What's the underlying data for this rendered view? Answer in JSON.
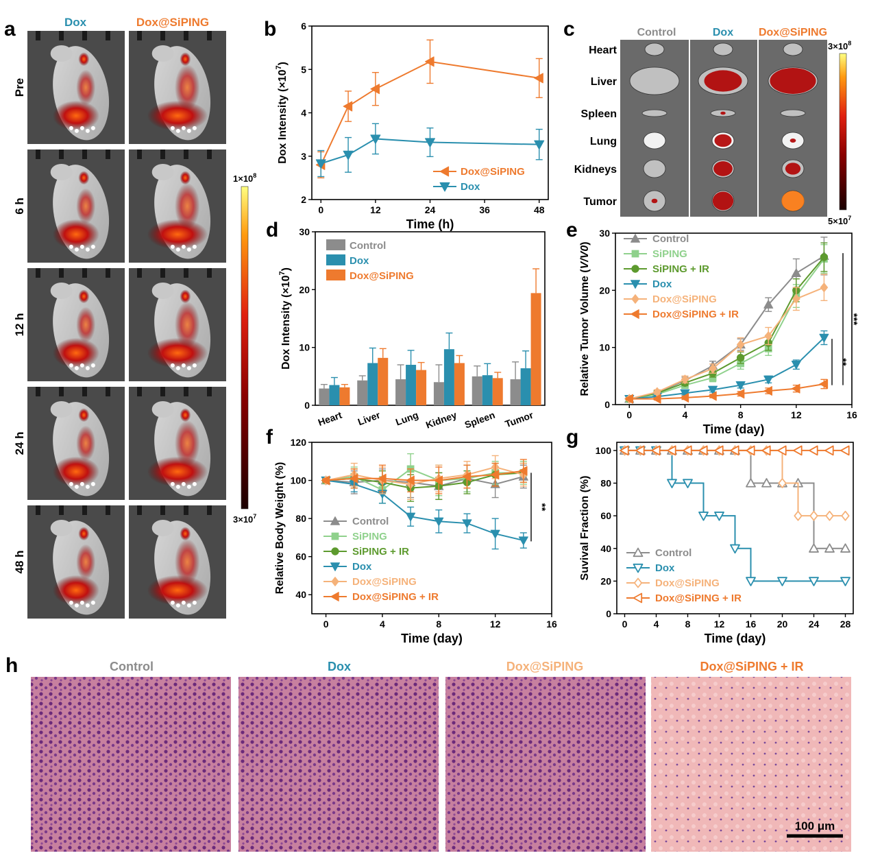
{
  "colors": {
    "control": "#8c8c8c",
    "siping": "#8fd18c",
    "siping_ir": "#5d9a2e",
    "dox": "#2a8fae",
    "dox_siping": "#f5b27a",
    "dox_siping_ir": "#ee7a2e",
    "label_dox": "#2a8fae",
    "label_doxsiping": "#ee7a2e",
    "label_doxsiping_light": "#f5b27a",
    "label_control": "#8c8c8c"
  },
  "panel_letters": {
    "a": "a",
    "b": "b",
    "c": "c",
    "d": "d",
    "e": "e",
    "f": "f",
    "g": "g",
    "h": "h"
  },
  "panel_a": {
    "col_labels": [
      "Dox",
      "Dox@SiPING"
    ],
    "row_labels": [
      "Pre",
      "6 h",
      "12 h",
      "24 h",
      "48 h"
    ],
    "colorbar_max_base": "1×10",
    "colorbar_max_exp": "8",
    "colorbar_min_base": "3×10",
    "colorbar_min_exp": "7"
  },
  "panel_c": {
    "col_labels": [
      "Control",
      "Dox",
      "Dox@SiPING"
    ],
    "row_labels": [
      "Heart",
      "Liver",
      "Spleen",
      "Lung",
      "Kidneys",
      "Tumor"
    ],
    "colorbar_max_base": "3×10",
    "colorbar_max_exp": "8",
    "colorbar_min_base": "5×10",
    "colorbar_min_exp": "7"
  },
  "panel_h": {
    "labels": [
      "Control",
      "Dox",
      "Dox@SiPING",
      "Dox@SiPING + IR"
    ],
    "scale_bar": "100 μm"
  },
  "chart_data": [
    {
      "id": "b",
      "type": "line",
      "xlabel": "Time (h)",
      "ylabel_base": "Dox Intensity (×10",
      "ylabel_exp": "7",
      "ylabel_end": ")",
      "xlim": [
        -2,
        50
      ],
      "ylim": [
        2,
        6
      ],
      "xticks": [
        0,
        12,
        24,
        36,
        48
      ],
      "yticks": [
        2,
        3,
        4,
        5,
        6
      ],
      "x": [
        0,
        6,
        12,
        24,
        48
      ],
      "series": [
        {
          "name": "Dox@SiPING",
          "color": "#ee7a2e",
          "marker": "tri-left",
          "values": [
            2.8,
            4.15,
            4.55,
            5.18,
            4.8
          ],
          "err": [
            0.3,
            0.35,
            0.38,
            0.5,
            0.45
          ]
        },
        {
          "name": "Dox",
          "color": "#2a8fae",
          "marker": "tri-down",
          "values": [
            2.83,
            3.03,
            3.4,
            3.32,
            3.27
          ],
          "err": [
            0.3,
            0.4,
            0.35,
            0.33,
            0.35
          ]
        }
      ],
      "legend": "bottom-right"
    },
    {
      "id": "d",
      "type": "bar",
      "ylabel_base": "Dox Intensity (×10",
      "ylabel_exp": "7",
      "ylabel_end": ")",
      "ylim": [
        0,
        30
      ],
      "yticks": [
        0,
        10,
        20,
        30
      ],
      "categories": [
        "Heart",
        "Liver",
        "Lung",
        "Kidney",
        "Spleen",
        "Tumor"
      ],
      "series": [
        {
          "name": "Control",
          "color": "#8c8c8c",
          "values": [
            2.9,
            4.3,
            4.5,
            4.0,
            5.0,
            4.5
          ],
          "err": [
            0.7,
            0.8,
            2.5,
            3.0,
            1.8,
            3.0
          ]
        },
        {
          "name": "Dox",
          "color": "#2a8fae",
          "values": [
            3.5,
            7.3,
            7.0,
            9.7,
            5.2,
            6.4
          ],
          "err": [
            1.3,
            2.6,
            2.5,
            2.8,
            2.0,
            3.0
          ]
        },
        {
          "name": "Dox@SiPING",
          "color": "#ee7a2e",
          "values": [
            3.1,
            8.2,
            6.1,
            7.3,
            4.7,
            19.4
          ],
          "err": [
            0.5,
            1.6,
            1.3,
            1.3,
            1.0,
            4.2
          ]
        }
      ],
      "legend": "top-left"
    },
    {
      "id": "e",
      "type": "line",
      "xlabel": "Time (day)",
      "ylabel_base": "Relative Tumor Volume (",
      "ylabel_italic": "V/V0",
      "ylabel_end": ")",
      "xlim": [
        -1,
        16
      ],
      "ylim": [
        0,
        30
      ],
      "xticks": [
        0,
        4,
        8,
        12,
        16
      ],
      "yticks": [
        0,
        10,
        20,
        30
      ],
      "x": [
        0,
        2,
        4,
        6,
        8,
        10,
        12,
        14
      ],
      "series": [
        {
          "name": "Control",
          "color": "#8c8c8c",
          "marker": "tri-up",
          "values": [
            1,
            2.1,
            4.2,
            6.8,
            10.5,
            17.5,
            23,
            26
          ],
          "err": [
            0.3,
            0.4,
            0.6,
            0.8,
            1.0,
            1.2,
            2.5,
            3.3
          ]
        },
        {
          "name": "SiPING",
          "color": "#8fd18c",
          "marker": "square",
          "values": [
            1,
            1.8,
            3.4,
            4.7,
            7.2,
            9.8,
            19,
            25.5
          ],
          "err": [
            0.3,
            0.4,
            0.5,
            0.7,
            1.0,
            1.2,
            2.0,
            2.5
          ]
        },
        {
          "name": "SiPING + IR",
          "color": "#5d9a2e",
          "marker": "circle",
          "values": [
            1,
            2.0,
            3.8,
            5.5,
            8.2,
            10.8,
            20,
            25.8
          ],
          "err": [
            0.3,
            0.4,
            0.5,
            0.7,
            1.0,
            1.3,
            2.0,
            2.5
          ]
        },
        {
          "name": "Dox",
          "color": "#2a8fae",
          "marker": "tri-down",
          "values": [
            1,
            1.4,
            2.0,
            2.6,
            3.4,
            4.4,
            7.0,
            11.7
          ],
          "err": [
            0.2,
            0.3,
            0.3,
            0.4,
            0.5,
            0.6,
            0.8,
            1.2
          ]
        },
        {
          "name": "Dox@SiPING",
          "color": "#f5b27a",
          "marker": "diamond",
          "values": [
            1,
            2.2,
            4.4,
            6.3,
            10.5,
            12.0,
            18.5,
            20.5
          ],
          "err": [
            0.3,
            0.4,
            0.6,
            0.8,
            1.2,
            1.5,
            2.0,
            2.3
          ]
        },
        {
          "name": "Dox@SiPING + IR",
          "color": "#ee7a2e",
          "marker": "tri-left",
          "values": [
            1,
            1.0,
            1.2,
            1.5,
            1.9,
            2.4,
            2.8,
            3.6
          ],
          "err": [
            0.2,
            0.2,
            0.3,
            0.3,
            0.4,
            0.5,
            0.6,
            0.8
          ]
        }
      ],
      "significance": [
        "**",
        "***"
      ],
      "legend": "top-left"
    },
    {
      "id": "f",
      "type": "line",
      "xlabel": "Time (day)",
      "ylabel": "Relative Body Weight (%)",
      "xlim": [
        -1,
        16
      ],
      "ylim": [
        30,
        120
      ],
      "xticks": [
        0,
        4,
        8,
        12,
        16
      ],
      "yticks": [
        40,
        60,
        80,
        100,
        120
      ],
      "x": [
        0,
        2,
        4,
        6,
        8,
        10,
        12,
        14
      ],
      "series": [
        {
          "name": "Control",
          "color": "#8c8c8c",
          "marker": "tri-up",
          "values": [
            100,
            99,
            100,
            99,
            97,
            101,
            98,
            102
          ],
          "err": [
            1,
            6,
            6,
            8,
            7,
            7,
            7,
            6
          ]
        },
        {
          "name": "SiPING",
          "color": "#8fd18c",
          "marker": "square",
          "values": [
            100,
            102,
            95,
            106,
            100,
            101,
            104,
            104
          ],
          "err": [
            1,
            5,
            7,
            8,
            8,
            7,
            6,
            6
          ]
        },
        {
          "name": "SiPING + IR",
          "color": "#5d9a2e",
          "marker": "circle",
          "values": [
            100,
            101,
            99,
            96,
            97,
            99,
            103,
            104
          ],
          "err": [
            1,
            5,
            6,
            7,
            7,
            6,
            6,
            5
          ]
        },
        {
          "name": "Dox",
          "color": "#2a8fae",
          "marker": "tri-down",
          "values": [
            100,
            98,
            93,
            81,
            78.5,
            77.5,
            72,
            68.5
          ],
          "err": [
            1,
            4,
            5,
            5,
            6,
            5,
            8,
            4
          ]
        },
        {
          "name": "Dox@SiPING",
          "color": "#f5b27a",
          "marker": "diamond",
          "values": [
            100,
            103,
            100,
            98,
            101,
            103,
            107,
            103
          ],
          "err": [
            1,
            6,
            7,
            8,
            7,
            7,
            6,
            6
          ]
        },
        {
          "name": "Dox@SiPING + IR",
          "color": "#ee7a2e",
          "marker": "tri-left",
          "values": [
            100,
            101,
            101,
            100,
            100,
            102,
            103,
            105
          ],
          "err": [
            1,
            5,
            7,
            6,
            7,
            6,
            6,
            6
          ]
        }
      ],
      "significance": [
        "**"
      ],
      "legend": "bottom-left"
    },
    {
      "id": "g",
      "type": "line",
      "xlabel": "Time (day)",
      "ylabel": "Suvival Fraction (%)",
      "xlim": [
        -1,
        29
      ],
      "ylim": [
        0,
        105
      ],
      "xticks": [
        0,
        4,
        8,
        12,
        16,
        20,
        24,
        28
      ],
      "yticks": [
        0,
        20,
        40,
        60,
        80,
        100
      ],
      "series": [
        {
          "name": "Control",
          "color": "#8c8c8c",
          "marker": "tri-up-open",
          "x": [
            0,
            2,
            4,
            6,
            8,
            10,
            12,
            14,
            16,
            18,
            20,
            22,
            24,
            26,
            28
          ],
          "values": [
            100,
            100,
            100,
            100,
            100,
            100,
            100,
            100,
            80,
            80,
            80,
            80,
            40,
            40,
            40
          ]
        },
        {
          "name": "Dox",
          "color": "#2a8fae",
          "marker": "tri-down-open",
          "x": [
            0,
            2,
            4,
            6,
            8,
            10,
            12,
            14,
            16,
            20,
            24,
            28
          ],
          "values": [
            100,
            100,
            100,
            80,
            80,
            60,
            60,
            40,
            20,
            20,
            20,
            20
          ]
        },
        {
          "name": "Dox@SiPING",
          "color": "#f5b27a",
          "marker": "diamond-open",
          "x": [
            0,
            2,
            4,
            6,
            8,
            10,
            12,
            14,
            16,
            18,
            20,
            22,
            24,
            26,
            28
          ],
          "values": [
            100,
            100,
            100,
            100,
            100,
            100,
            100,
            100,
            100,
            100,
            80,
            60,
            60,
            60,
            60
          ]
        },
        {
          "name": "Dox@SiPING + IR",
          "color": "#ee7a2e",
          "marker": "tri-left-open",
          "x": [
            0,
            2,
            4,
            6,
            8,
            10,
            12,
            14,
            16,
            18,
            20,
            22,
            24,
            26,
            28
          ],
          "values": [
            100,
            100,
            100,
            100,
            100,
            100,
            100,
            100,
            100,
            100,
            100,
            100,
            100,
            100,
            100
          ]
        }
      ],
      "legend": "bottom-left"
    }
  ]
}
